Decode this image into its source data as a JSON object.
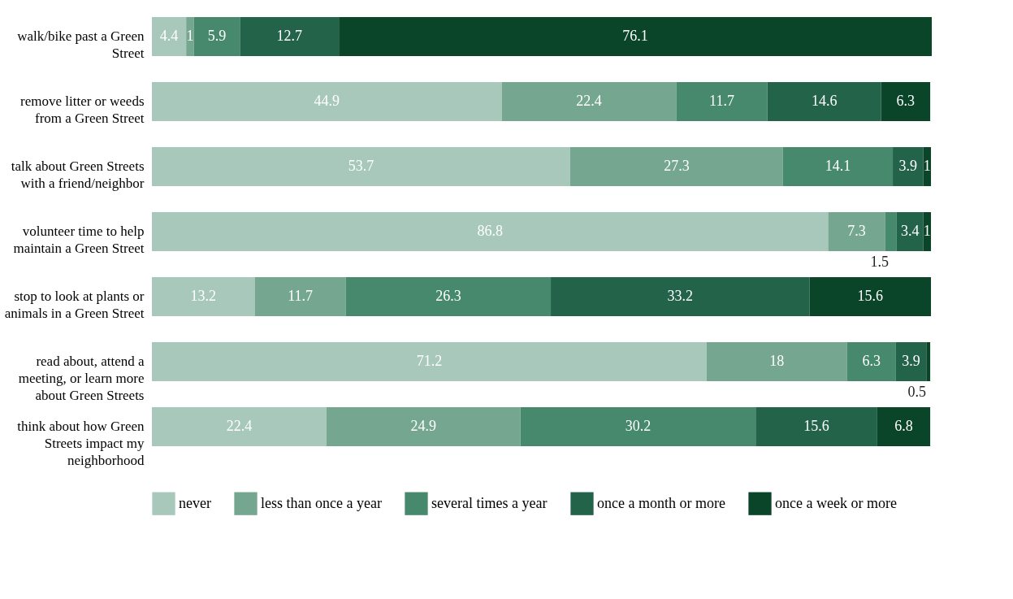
{
  "chart_data": {
    "type": "bar",
    "orientation": "horizontal",
    "stacked": true,
    "data_labels": true,
    "legend": "bottom",
    "grid": false,
    "tick_labels": "y",
    "categories": [
      "walk/bike past a Green Street",
      "remove litter or weeds from a Green Street",
      "talk about Green Streets with a friend/neighbor",
      "volunteer time to help maintain a Green Street",
      "stop to look at plants or animals in a Green Street",
      "read about, attend a meeting, or learn more about Green Streets",
      "think about how Green Streets impact my neighborhood"
    ],
    "series": [
      {
        "name": "never",
        "color": "#a7c8bb",
        "values": [
          4.4,
          44.9,
          53.7,
          86.8,
          13.2,
          71.2,
          22.4
        ]
      },
      {
        "name": "less than once a year",
        "color": "#75a690",
        "values": [
          1,
          22.4,
          27.3,
          7.3,
          11.7,
          18,
          24.9
        ]
      },
      {
        "name": "several times a year",
        "color": "#46896d",
        "values": [
          5.9,
          11.7,
          14.1,
          1.5,
          26.3,
          6.3,
          30.2
        ]
      },
      {
        "name": "once a month or more",
        "color": "#236349",
        "values": [
          12.7,
          14.6,
          3.9,
          3.4,
          33.2,
          3.9,
          15.6
        ]
      },
      {
        "name": "once a week or more",
        "color": "#0a4429",
        "values": [
          76.1,
          6.3,
          1,
          1,
          15.6,
          0.5,
          6.8
        ]
      }
    ]
  }
}
